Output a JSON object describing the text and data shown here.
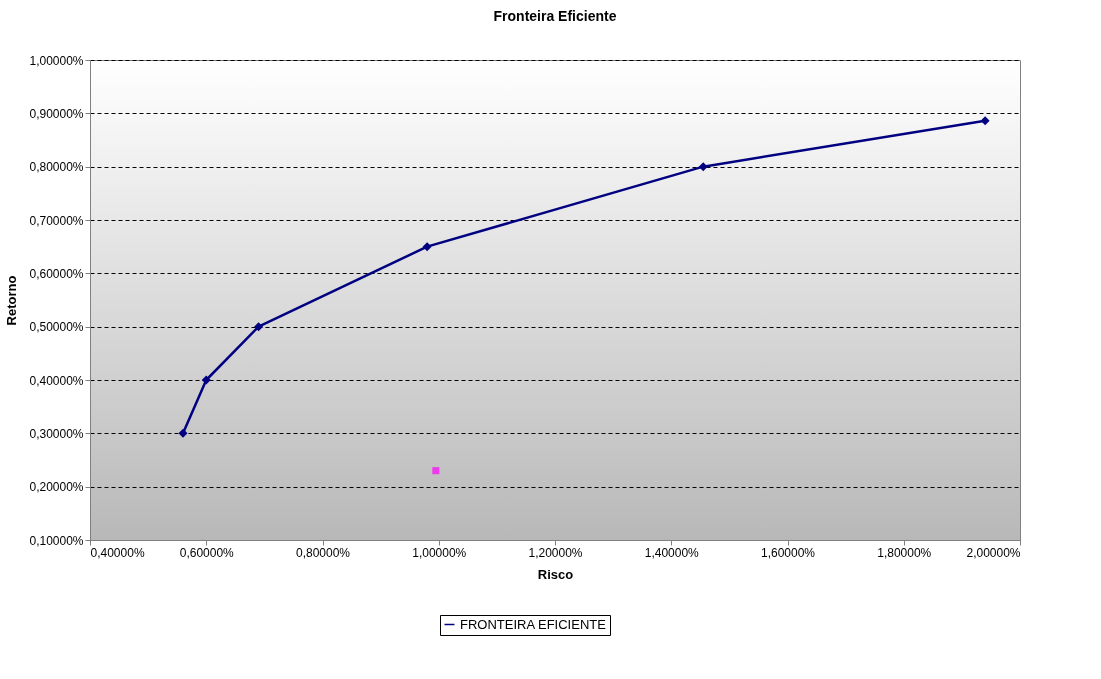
{
  "chart_data": {
    "type": "line",
    "title": "Fronteira Eficiente",
    "xlabel": "Risco",
    "ylabel": "Retorno",
    "xlim": [
      0.4,
      2.0
    ],
    "ylim": [
      0.1,
      1.0
    ],
    "xticks": [
      {
        "value": 0.4,
        "label": "0,40000%"
      },
      {
        "value": 0.6,
        "label": "0,60000%"
      },
      {
        "value": 0.8,
        "label": "0,80000%"
      },
      {
        "value": 1.0,
        "label": "1,00000%"
      },
      {
        "value": 1.2,
        "label": "1,20000%"
      },
      {
        "value": 1.4,
        "label": "1,40000%"
      },
      {
        "value": 1.6,
        "label": "1,60000%"
      },
      {
        "value": 1.8,
        "label": "1,80000%"
      },
      {
        "value": 2.0,
        "label": "2,00000%"
      }
    ],
    "yticks": [
      {
        "value": 0.1,
        "label": "0,10000%"
      },
      {
        "value": 0.2,
        "label": "0,20000%"
      },
      {
        "value": 0.3,
        "label": "0,30000%"
      },
      {
        "value": 0.4,
        "label": "0,40000%"
      },
      {
        "value": 0.5,
        "label": "0,50000%"
      },
      {
        "value": 0.6,
        "label": "0,60000%"
      },
      {
        "value": 0.7,
        "label": "0,70000%"
      },
      {
        "value": 0.8,
        "label": "0,80000%"
      },
      {
        "value": 0.9,
        "label": "0,90000%"
      },
      {
        "value": 1.0,
        "label": "1,00000%"
      }
    ],
    "grid": "y",
    "legend": "bottom",
    "marker": "diamond",
    "line_style": "solid",
    "series": [
      {
        "name": "FRONTEIRA EFICIENTE",
        "color": "#000080",
        "x": [
          0.56,
          0.6,
          0.69,
          0.98,
          1.455,
          1.94
        ],
        "values": [
          0.3,
          0.4,
          0.5,
          0.65,
          0.8,
          0.886
        ]
      },
      {
        "type": "scatter",
        "marker": "square",
        "color": "#ff00ff",
        "x": [
          0.995
        ],
        "values": [
          0.23
        ]
      }
    ]
  }
}
